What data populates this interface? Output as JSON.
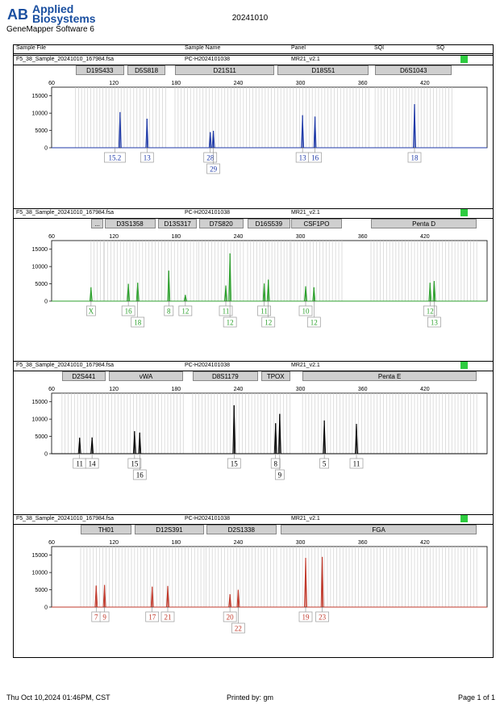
{
  "header": {
    "brand_line1": "Applied",
    "brand_line2": "Biosystems",
    "software": "GeneMapper Software 6",
    "title": "20241010"
  },
  "table_header": {
    "sample_file": "Sample File",
    "sample_name": "Sample Name",
    "panel": "Panel",
    "sqi": "SQI",
    "sq": "SQ"
  },
  "footer": {
    "datetime": "Thu Oct 10,2024 01:46PM, CST",
    "printed_by": "Printed by: gm",
    "page": "Page 1 of 1"
  },
  "chart_data": [
    {
      "type": "line",
      "sample_file": "F5_38_Sample_20241010_167984.fsa",
      "sample_name": "PC-H2024101038",
      "panel": "MR21_v2.1",
      "color": "#1f3aa8",
      "xlim": [
        60,
        480
      ],
      "ylim": [
        0,
        17500
      ],
      "xticks": [
        60,
        120,
        180,
        240,
        300,
        360,
        420
      ],
      "yticks": [
        0,
        5000,
        10000,
        15000
      ],
      "loci": [
        {
          "name": "D19S433",
          "start": 83,
          "end": 130
        },
        {
          "name": "D5S818",
          "start": 133,
          "end": 170
        },
        {
          "name": "D21S11",
          "start": 179,
          "end": 275
        },
        {
          "name": "D18S51",
          "start": 278,
          "end": 366
        },
        {
          "name": "D6S1043",
          "start": 372,
          "end": 446
        }
      ],
      "peaks": [
        {
          "x": 126,
          "y": 10300
        },
        {
          "x": 152,
          "y": 8400
        },
        {
          "x": 213,
          "y": 4500
        },
        {
          "x": 216,
          "y": 4900
        },
        {
          "x": 302,
          "y": 9400
        },
        {
          "x": 314,
          "y": 9000
        },
        {
          "x": 410,
          "y": 12600
        }
      ],
      "alleles": [
        {
          "x": 121,
          "label": "15.2",
          "row": 0
        },
        {
          "x": 152,
          "label": "13",
          "row": 0
        },
        {
          "x": 213,
          "label": "28",
          "row": 0
        },
        {
          "x": 216,
          "label": "29",
          "row": 1
        },
        {
          "x": 302,
          "label": "13",
          "row": 0
        },
        {
          "x": 314,
          "label": "16",
          "row": 0
        },
        {
          "x": 410,
          "label": "18",
          "row": 0
        }
      ]
    },
    {
      "type": "line",
      "sample_file": "F5_38_Sample_20241010_167984.fsa",
      "sample_name": "PC-H2024101038",
      "panel": "MR21_v2.1",
      "color": "#2ca02c",
      "xlim": [
        60,
        480
      ],
      "ylim": [
        0,
        17500
      ],
      "xticks": [
        60,
        120,
        180,
        240,
        300,
        360,
        420
      ],
      "yticks": [
        0,
        5000,
        10000,
        15000
      ],
      "loci": [
        {
          "name": "...",
          "start": 98,
          "end": 110
        },
        {
          "name": "D3S1358",
          "start": 111,
          "end": 160
        },
        {
          "name": "D13S317",
          "start": 163,
          "end": 200
        },
        {
          "name": "D7S820",
          "start": 202,
          "end": 245
        },
        {
          "name": "D16S539",
          "start": 249,
          "end": 290
        },
        {
          "name": "CSF1PO",
          "start": 291,
          "end": 340
        },
        {
          "name": "Penta D",
          "start": 368,
          "end": 470
        }
      ],
      "peaks": [
        {
          "x": 98,
          "y": 4000
        },
        {
          "x": 134,
          "y": 5000
        },
        {
          "x": 143,
          "y": 5300
        },
        {
          "x": 173,
          "y": 8800
        },
        {
          "x": 189,
          "y": 1800
        },
        {
          "x": 228,
          "y": 4500
        },
        {
          "x": 232,
          "y": 13800
        },
        {
          "x": 265,
          "y": 5100
        },
        {
          "x": 269,
          "y": 6200
        },
        {
          "x": 305,
          "y": 4300
        },
        {
          "x": 313,
          "y": 4000
        },
        {
          "x": 425,
          "y": 5300
        },
        {
          "x": 429,
          "y": 5800
        }
      ],
      "alleles": [
        {
          "x": 98,
          "label": "X",
          "row": 0
        },
        {
          "x": 134,
          "label": "16",
          "row": 0
        },
        {
          "x": 143,
          "label": "18",
          "row": 1
        },
        {
          "x": 173,
          "label": "8",
          "row": 0
        },
        {
          "x": 189,
          "label": "12",
          "row": 0
        },
        {
          "x": 228,
          "label": "11",
          "row": 0
        },
        {
          "x": 232,
          "label": "12",
          "row": 1
        },
        {
          "x": 265,
          "label": "11",
          "row": 0
        },
        {
          "x": 269,
          "label": "12",
          "row": 1
        },
        {
          "x": 305,
          "label": "10",
          "row": 0
        },
        {
          "x": 313,
          "label": "12",
          "row": 1
        },
        {
          "x": 425,
          "label": "12",
          "row": 0
        },
        {
          "x": 429,
          "label": "13",
          "row": 1
        }
      ]
    },
    {
      "type": "line",
      "sample_file": "F5_38_Sample_20241010_167984.fsa",
      "sample_name": "PC-H2024101038",
      "panel": "MR21_v2.1",
      "color": "#000000",
      "xlim": [
        60,
        480
      ],
      "ylim": [
        0,
        17500
      ],
      "xticks": [
        60,
        120,
        180,
        240,
        300,
        360,
        420
      ],
      "yticks": [
        0,
        5000,
        10000,
        15000
      ],
      "loci": [
        {
          "name": "D2S441",
          "start": 70,
          "end": 112
        },
        {
          "name": "vWA",
          "start": 115,
          "end": 187
        },
        {
          "name": "D8S1179",
          "start": 196,
          "end": 259
        },
        {
          "name": "TPOX",
          "start": 262,
          "end": 290
        },
        {
          "name": "Penta E",
          "start": 302,
          "end": 470
        }
      ],
      "peaks": [
        {
          "x": 87,
          "y": 4600
        },
        {
          "x": 99,
          "y": 4700
        },
        {
          "x": 140,
          "y": 6500
        },
        {
          "x": 145,
          "y": 6100
        },
        {
          "x": 236,
          "y": 14000
        },
        {
          "x": 276,
          "y": 8800
        },
        {
          "x": 280,
          "y": 11500
        },
        {
          "x": 323,
          "y": 9600
        },
        {
          "x": 354,
          "y": 8600
        }
      ],
      "alleles": [
        {
          "x": 87,
          "label": "11",
          "row": 0
        },
        {
          "x": 99,
          "label": "14",
          "row": 0
        },
        {
          "x": 140,
          "label": "15",
          "row": 0
        },
        {
          "x": 145,
          "label": "16",
          "row": 1
        },
        {
          "x": 236,
          "label": "15",
          "row": 0
        },
        {
          "x": 276,
          "label": "8",
          "row": 0
        },
        {
          "x": 280,
          "label": "9",
          "row": 1
        },
        {
          "x": 323,
          "label": "5",
          "row": 0
        },
        {
          "x": 354,
          "label": "11",
          "row": 0
        }
      ]
    },
    {
      "type": "line",
      "sample_file": "F5_38_Sample_20241010_167984.fsa",
      "sample_name": "PC-H2024101038",
      "panel": "MR21_v2.1",
      "color": "#c0392b",
      "xlim": [
        60,
        480
      ],
      "ylim": [
        0,
        17500
      ],
      "xticks": [
        60,
        120,
        180,
        240,
        300,
        360,
        420
      ],
      "yticks": [
        0,
        5000,
        10000,
        15000
      ],
      "loci": [
        {
          "name": "TH01",
          "start": 88,
          "end": 137
        },
        {
          "name": "D12S391",
          "start": 140,
          "end": 207
        },
        {
          "name": "D2S1338",
          "start": 209,
          "end": 277
        },
        {
          "name": "FGA",
          "start": 281,
          "end": 470
        }
      ],
      "peaks": [
        {
          "x": 103,
          "y": 6200
        },
        {
          "x": 111,
          "y": 6400
        },
        {
          "x": 157,
          "y": 5900
        },
        {
          "x": 172,
          "y": 6100
        },
        {
          "x": 232,
          "y": 3700
        },
        {
          "x": 240,
          "y": 5000
        },
        {
          "x": 305,
          "y": 14200
        },
        {
          "x": 321,
          "y": 14500
        }
      ],
      "alleles": [
        {
          "x": 103,
          "label": "7",
          "row": 0
        },
        {
          "x": 111,
          "label": "9",
          "row": 0
        },
        {
          "x": 157,
          "label": "17",
          "row": 0
        },
        {
          "x": 172,
          "label": "21",
          "row": 0
        },
        {
          "x": 232,
          "label": "20",
          "row": 0
        },
        {
          "x": 240,
          "label": "22",
          "row": 1
        },
        {
          "x": 305,
          "label": "19",
          "row": 0
        },
        {
          "x": 321,
          "label": "23",
          "row": 0
        }
      ]
    }
  ]
}
